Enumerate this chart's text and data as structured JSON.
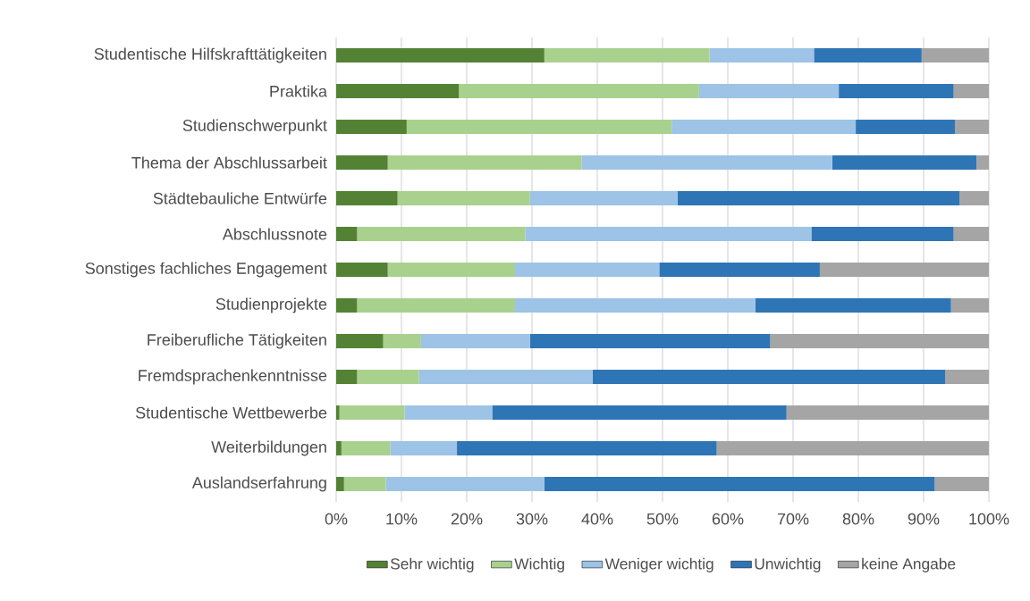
{
  "chart_data": {
    "type": "bar",
    "orientation": "horizontal",
    "stacked": true,
    "categories": [
      "Studentische Hilfskrafttätigkeiten",
      "Praktika",
      "Studienschwerpunkt",
      "Thema der Abschlussarbeit",
      "Städtebauliche Entwürfe",
      "Abschlussnote",
      "Sonstiges fachliches Engagement",
      "Studienprojekte",
      "Freiberufliche Tätigkeiten",
      "Fremdsprachenkenntnisse",
      "Studentische Wettbewerbe",
      "Weiterbildungen",
      "Auslandserfahrung"
    ],
    "series": [
      {
        "name": "Sehr wichtig",
        "color": "#548235",
        "values": [
          31.9,
          18.8,
          10.8,
          7.9,
          9.4,
          3.2,
          7.9,
          3.2,
          7.2,
          3.2,
          0.5,
          0.8,
          1.2
        ]
      },
      {
        "name": "Wichtig",
        "color": "#a9d18e",
        "values": [
          25.3,
          36.8,
          40.6,
          29.7,
          20.3,
          25.8,
          19.5,
          24.2,
          5.8,
          9.5,
          10.0,
          7.5,
          6.4
        ]
      },
      {
        "name": "Weniger wichtig",
        "color": "#9dc3e6",
        "values": [
          16.0,
          21.4,
          28.2,
          38.4,
          22.6,
          43.8,
          22.1,
          36.8,
          16.7,
          26.6,
          13.4,
          10.2,
          24.3
        ]
      },
      {
        "name": "Unwichtig",
        "color": "#2e75b6",
        "values": [
          16.5,
          17.6,
          15.2,
          22.1,
          43.2,
          21.8,
          24.6,
          30.0,
          36.8,
          54.0,
          45.1,
          39.8,
          59.8
        ]
      },
      {
        "name": "keine Angabe",
        "color": "#a5a5a5",
        "values": [
          10.3,
          5.4,
          5.2,
          1.9,
          4.5,
          5.4,
          25.9,
          5.8,
          33.5,
          6.7,
          31.0,
          41.7,
          8.3
        ]
      }
    ],
    "xlim": [
      0,
      100
    ],
    "xticks": [
      {
        "value": 0,
        "label": "0%"
      },
      {
        "value": 10,
        "label": "10%"
      },
      {
        "value": 20,
        "label": "20%"
      },
      {
        "value": 30,
        "label": "30%"
      },
      {
        "value": 40,
        "label": "40%"
      },
      {
        "value": 50,
        "label": "50%"
      },
      {
        "value": 60,
        "label": "60%"
      },
      {
        "value": 70,
        "label": "70%"
      },
      {
        "value": 80,
        "label": "80%"
      },
      {
        "value": 90,
        "label": "90%"
      },
      {
        "value": 100,
        "label": "100%"
      }
    ],
    "grid": "x",
    "legend": "bottom"
  }
}
